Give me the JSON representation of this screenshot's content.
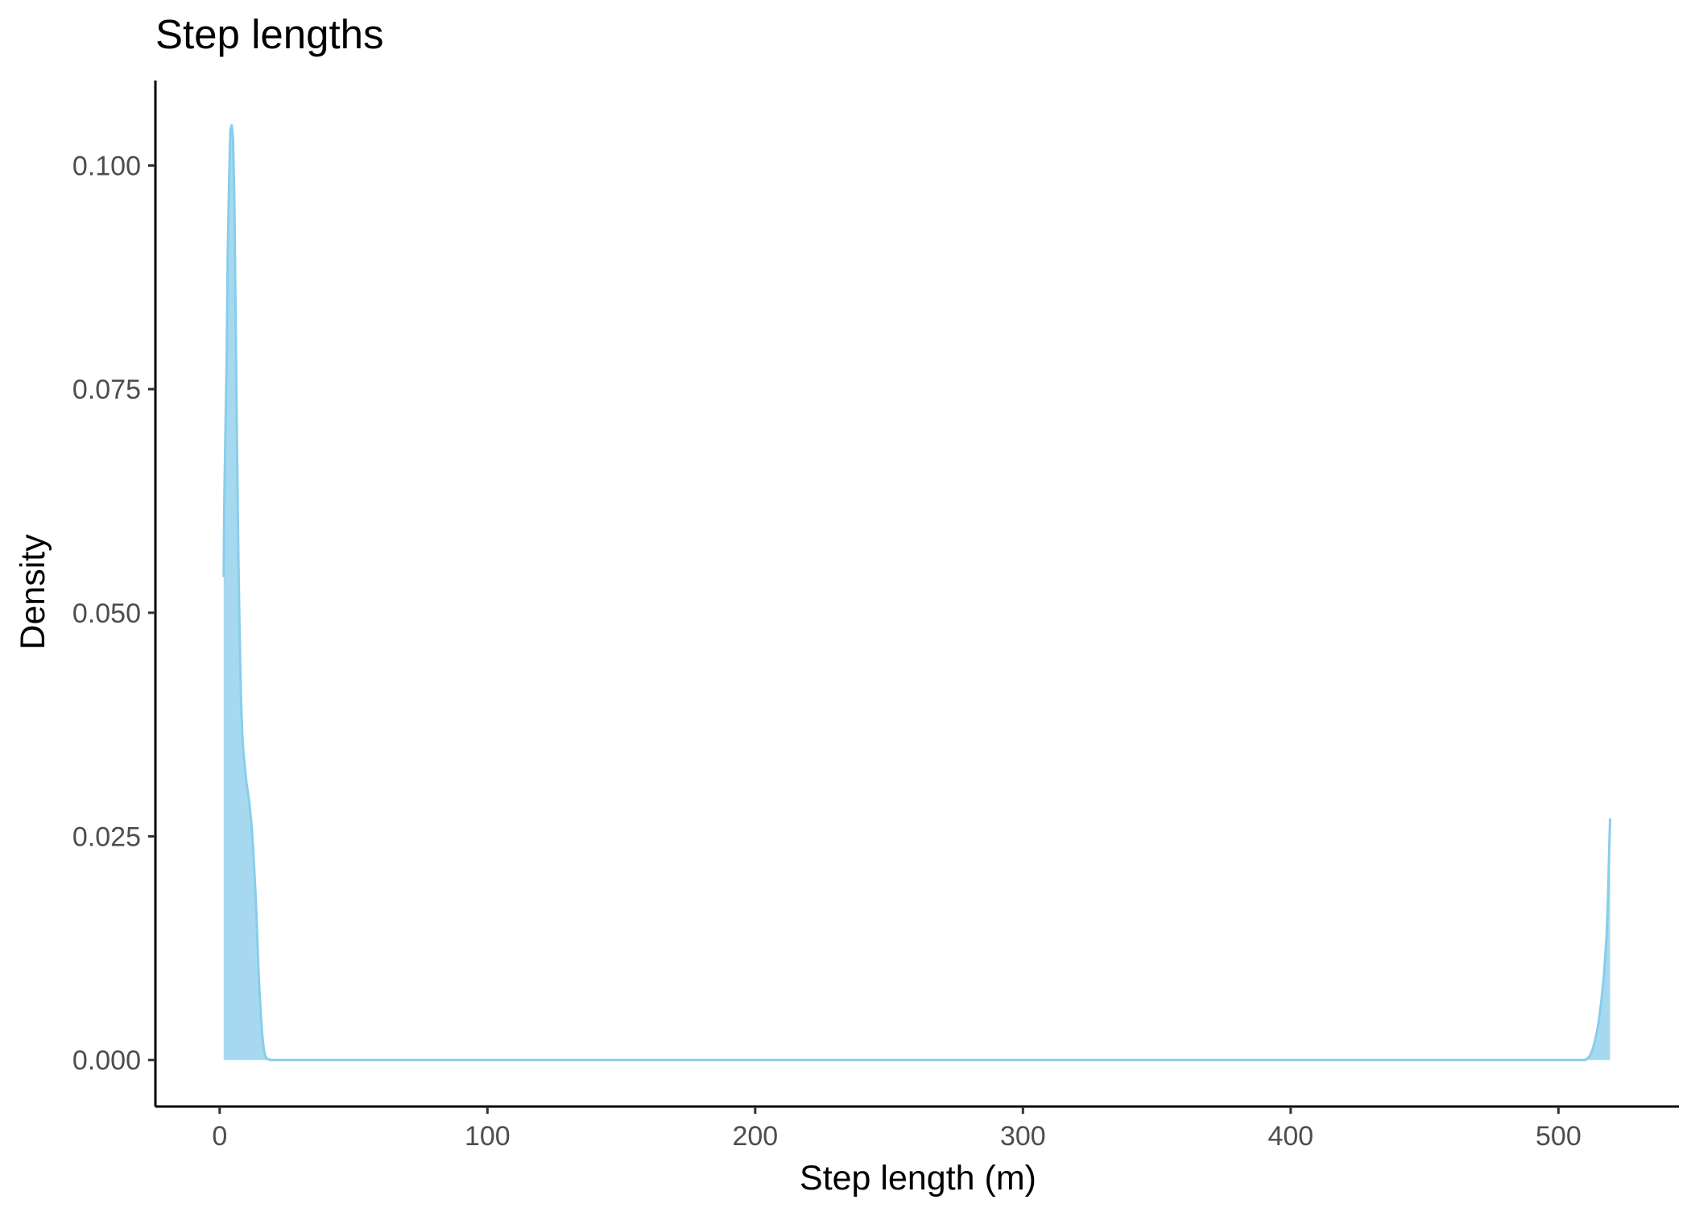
{
  "chart_data": {
    "type": "area",
    "title": "Step lengths",
    "xlabel": "Step length (m)",
    "ylabel": "Density",
    "xlim": [
      -24,
      545
    ],
    "ylim": [
      -0.0052,
      0.1095
    ],
    "x_ticks": [
      0,
      100,
      200,
      300,
      400,
      500
    ],
    "x_tick_labels": [
      "0",
      "100",
      "200",
      "300",
      "400",
      "500"
    ],
    "y_ticks": [
      0.0,
      0.025,
      0.05,
      0.075,
      0.1
    ],
    "y_tick_labels": [
      "0.000",
      "0.025",
      "0.050",
      "0.075",
      "0.100"
    ],
    "grid": false,
    "legend": "none",
    "fill_color": "#a6d9ef",
    "line_color": "#87ceeb",
    "series": [
      {
        "x": [
          1.5,
          1.7,
          2.2,
          2.6,
          3.0,
          3.5,
          4.0,
          4.5,
          5.0,
          5.5,
          6.0,
          6.5,
          7.0,
          7.5,
          8.0,
          8.5,
          9.0,
          10.0,
          11.0,
          12.0,
          12.8,
          13.5,
          14.0,
          14.5,
          15.0,
          15.5,
          16.0,
          16.5,
          17.0,
          17.5,
          18.0,
          19.0,
          20.0,
          25.0,
          50.0,
          100.0,
          200.0,
          300.0,
          400.0,
          500.0,
          510.0,
          511.0,
          512.0,
          513.0,
          514.0,
          515.0,
          516.0,
          517.0,
          518.0,
          518.5,
          519.0,
          519.3
        ],
        "y": [
          0.054,
          0.062,
          0.071,
          0.078,
          0.09,
          0.098,
          0.104,
          0.1045,
          0.103,
          0.096,
          0.082,
          0.068,
          0.056,
          0.047,
          0.04,
          0.036,
          0.034,
          0.031,
          0.029,
          0.026,
          0.022,
          0.018,
          0.014,
          0.01,
          0.007,
          0.0045,
          0.0025,
          0.0012,
          0.0005,
          0.0002,
          0.0001,
          0.0,
          0.0,
          0.0,
          0.0,
          0.0,
          0.0,
          0.0,
          0.0,
          0.0,
          0.0,
          0.0002,
          0.0006,
          0.0014,
          0.0026,
          0.0042,
          0.0065,
          0.0095,
          0.014,
          0.018,
          0.024,
          0.027
        ]
      }
    ]
  }
}
